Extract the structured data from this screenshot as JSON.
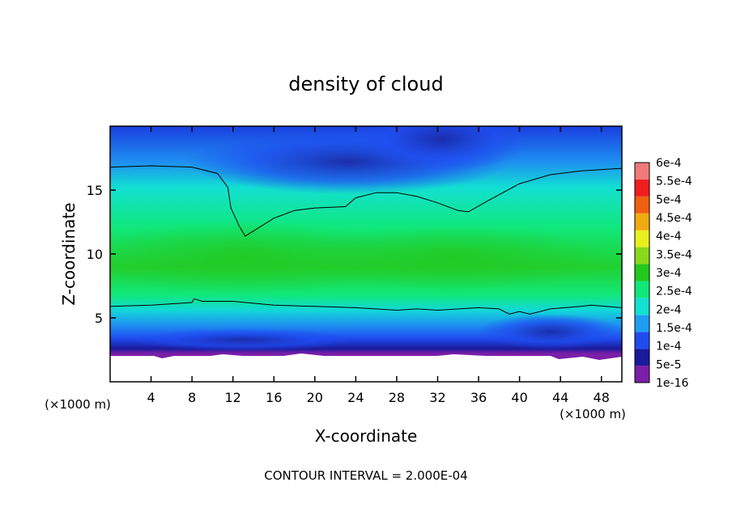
{
  "chart_data": {
    "type": "contour",
    "title": "density of cloud",
    "xlabel": "X-coordinate",
    "ylabel": "Z-coordinate",
    "x_unit": "(×1000 m)",
    "y_unit": "(×1000 m)",
    "xlim": [
      0,
      50
    ],
    "ylim": [
      0,
      20
    ],
    "x_ticks": [
      4,
      8,
      12,
      16,
      20,
      24,
      28,
      32,
      36,
      40,
      44,
      48
    ],
    "y_ticks": [
      5,
      10,
      15
    ],
    "footer": "CONTOUR INTERVAL = 2.000E-04",
    "colorbar": {
      "levels": [
        {
          "label": "1e-16",
          "color": "#7a1fa8"
        },
        {
          "label": "5e-5",
          "color": "#1a1a9c"
        },
        {
          "label": "1e-4",
          "color": "#1f4cf0"
        },
        {
          "label": "1.5e-4",
          "color": "#1e9ef2"
        },
        {
          "label": "2e-4",
          "color": "#12e0d2"
        },
        {
          "label": "2.5e-4",
          "color": "#10e87a"
        },
        {
          "label": "3e-4",
          "color": "#22c81e"
        },
        {
          "label": "3.5e-4",
          "color": "#8ad81e"
        },
        {
          "label": "4e-4",
          "color": "#e8f01e"
        },
        {
          "label": "4.5e-4",
          "color": "#f0aa12"
        },
        {
          "label": "5e-4",
          "color": "#f06012"
        },
        {
          "label": "5.5e-4",
          "color": "#f01e1e"
        },
        {
          "label": "6e-4",
          "color": "#f07a7a"
        }
      ]
    },
    "contour_lines": [
      {
        "name": "upper",
        "points": [
          [
            0,
            16.8
          ],
          [
            4,
            16.9
          ],
          [
            8,
            16.8
          ],
          [
            10.5,
            16.3
          ],
          [
            11.5,
            15.2
          ],
          [
            11.8,
            13.6
          ],
          [
            12.6,
            12.2
          ],
          [
            13.2,
            11.4
          ],
          [
            14,
            11.8
          ],
          [
            16,
            12.8
          ],
          [
            18,
            13.4
          ],
          [
            20,
            13.6
          ],
          [
            23,
            13.7
          ],
          [
            24,
            14.4
          ],
          [
            26,
            14.8
          ],
          [
            28,
            14.8
          ],
          [
            30,
            14.5
          ],
          [
            32,
            14.0
          ],
          [
            34,
            13.4
          ],
          [
            35,
            13.3
          ],
          [
            37,
            14.2
          ],
          [
            40,
            15.5
          ],
          [
            43,
            16.2
          ],
          [
            46,
            16.5
          ],
          [
            50,
            16.7
          ]
        ]
      },
      {
        "name": "lower",
        "points": [
          [
            0,
            5.9
          ],
          [
            4,
            6.0
          ],
          [
            6,
            6.1
          ],
          [
            8,
            6.2
          ],
          [
            8.2,
            6.5
          ],
          [
            9,
            6.3
          ],
          [
            12,
            6.3
          ],
          [
            16,
            6.0
          ],
          [
            20,
            5.9
          ],
          [
            24,
            5.8
          ],
          [
            28,
            5.6
          ],
          [
            30,
            5.7
          ],
          [
            32,
            5.6
          ],
          [
            36,
            5.8
          ],
          [
            38,
            5.7
          ],
          [
            39,
            5.3
          ],
          [
            40,
            5.5
          ],
          [
            41,
            5.3
          ],
          [
            43,
            5.7
          ],
          [
            46,
            5.9
          ],
          [
            47,
            6.0
          ],
          [
            50,
            5.8
          ]
        ]
      }
    ]
  }
}
